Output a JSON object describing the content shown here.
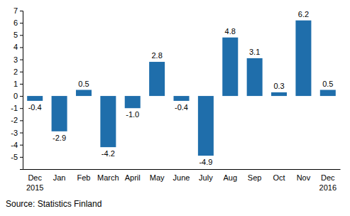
{
  "chart_data": {
    "type": "bar",
    "categories": [
      "Dec 2015",
      "Jan",
      "Feb",
      "March",
      "April",
      "May",
      "June",
      "July",
      "Aug",
      "Sep",
      "Oct",
      "Nov",
      "Dec 2016"
    ],
    "values": [
      -0.4,
      -2.9,
      0.5,
      -4.2,
      -1.0,
      2.8,
      -0.4,
      -4.9,
      4.8,
      3.1,
      0.3,
      6.2,
      0.5
    ],
    "value_labels": [
      "-0.4",
      "-2.9",
      "0.5",
      "-4.2",
      "-1.0",
      "2.8",
      "-0.4",
      "-4.9",
      "4.8",
      "3.1",
      "0.3",
      "6.2",
      "0.5"
    ],
    "color": "#1f6eab",
    "ylim": [
      -6,
      7
    ],
    "yticks": [
      -5,
      -4,
      -3,
      -2,
      -1,
      0,
      1,
      2,
      3,
      4,
      5,
      6,
      7
    ],
    "grid": false,
    "data_labels": true,
    "source": "Source: Statistics Finland"
  }
}
